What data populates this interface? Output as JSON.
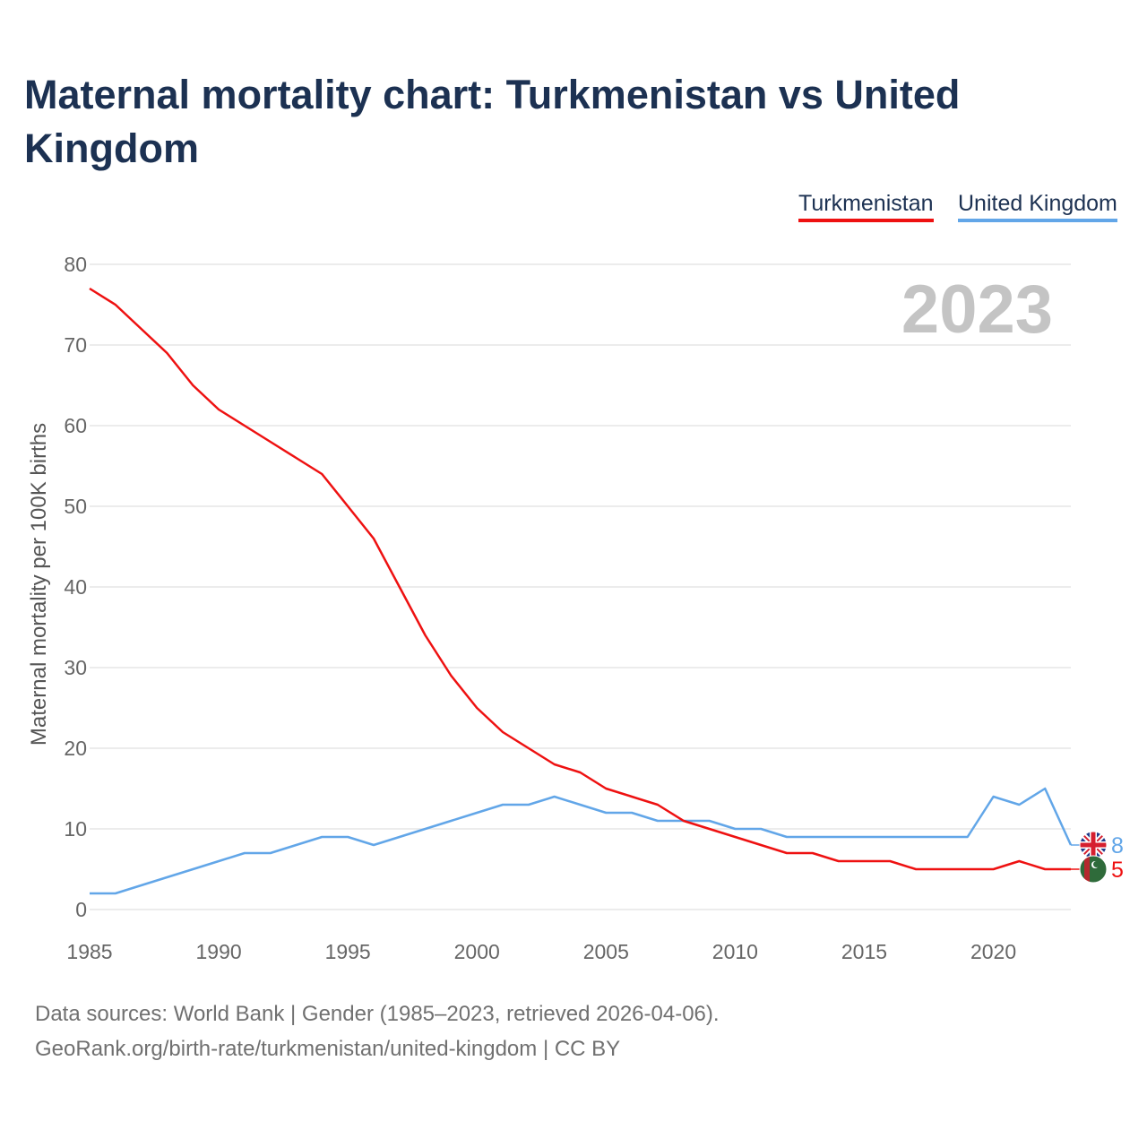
{
  "title": "Maternal mortality chart: Turkmenistan vs United Kingdom",
  "legend": [
    {
      "name": "Turkmenistan",
      "color": "#ee1111"
    },
    {
      "name": "United Kingdom",
      "color": "#62a6e8"
    }
  ],
  "footer": {
    "line1": "Data sources: World Bank | Gender (1985–2023, retrieved 2026-04-06).",
    "line2": "GeoRank.org/birth-rate/turkmenistan/united-kingdom | CC BY"
  },
  "chart_data": {
    "type": "line",
    "title": "Maternal mortality chart: Turkmenistan vs United Kingdom",
    "year_label": "2023",
    "xlabel": "",
    "ylabel": "Maternal mortality per 100K births",
    "xlim": [
      1985,
      2023
    ],
    "ylim": [
      0,
      80
    ],
    "x_ticks": [
      1985,
      1990,
      1995,
      2000,
      2005,
      2010,
      2015,
      2020
    ],
    "y_ticks": [
      0,
      10,
      20,
      30,
      40,
      50,
      60,
      70,
      80
    ],
    "grid": true,
    "legend_position": "top-right",
    "x": [
      1985,
      1986,
      1987,
      1988,
      1989,
      1990,
      1991,
      1992,
      1993,
      1994,
      1995,
      1996,
      1997,
      1998,
      1999,
      2000,
      2001,
      2002,
      2003,
      2004,
      2005,
      2006,
      2007,
      2008,
      2009,
      2010,
      2011,
      2012,
      2013,
      2014,
      2015,
      2016,
      2017,
      2018,
      2019,
      2020,
      2021,
      2022,
      2023
    ],
    "series": [
      {
        "name": "Turkmenistan",
        "color": "#ee1111",
        "end_label": "5",
        "flag": "turkmenistan-flag-icon",
        "values": [
          77,
          75,
          72,
          69,
          65,
          62,
          60,
          58,
          56,
          54,
          50,
          46,
          40,
          34,
          29,
          25,
          22,
          20,
          18,
          17,
          15,
          14,
          13,
          11,
          10,
          9,
          8,
          7,
          7,
          6,
          6,
          6,
          5,
          5,
          5,
          5,
          6,
          5,
          5
        ]
      },
      {
        "name": "United Kingdom",
        "color": "#62a6e8",
        "end_label": "8",
        "flag": "uk-flag-icon",
        "values": [
          2,
          2,
          3,
          4,
          5,
          6,
          7,
          7,
          8,
          9,
          9,
          8,
          9,
          10,
          11,
          12,
          13,
          13,
          14,
          13,
          12,
          12,
          11,
          11,
          11,
          10,
          10,
          9,
          9,
          9,
          9,
          9,
          9,
          9,
          9,
          14,
          13,
          15,
          8
        ]
      }
    ]
  }
}
